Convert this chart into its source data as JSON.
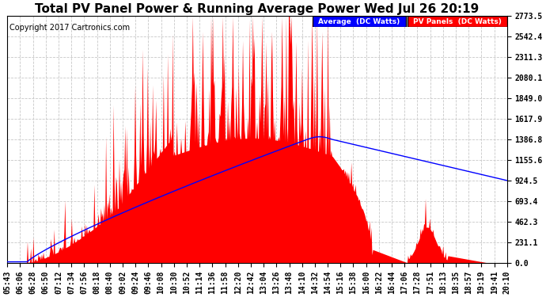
{
  "title": "Total PV Panel Power & Running Average Power Wed Jul 26 20:19",
  "copyright": "Copyright 2017 Cartronics.com",
  "legend_avg": "Average  (DC Watts)",
  "legend_pv": "PV Panels  (DC Watts)",
  "y_ticks": [
    0.0,
    231.1,
    462.3,
    693.4,
    924.5,
    1155.6,
    1386.8,
    1617.9,
    1849.0,
    2080.1,
    2311.3,
    2542.4,
    2773.5
  ],
  "x_labels": [
    "05:43",
    "06:06",
    "06:28",
    "06:50",
    "07:12",
    "07:34",
    "07:56",
    "08:18",
    "08:40",
    "09:02",
    "09:24",
    "09:46",
    "10:08",
    "10:30",
    "10:52",
    "11:14",
    "11:36",
    "11:58",
    "12:20",
    "12:42",
    "13:04",
    "13:26",
    "13:48",
    "14:10",
    "14:32",
    "14:54",
    "15:16",
    "15:38",
    "16:00",
    "16:22",
    "16:44",
    "17:06",
    "17:28",
    "17:51",
    "18:13",
    "18:35",
    "18:57",
    "19:19",
    "19:41",
    "20:10"
  ],
  "ymax": 2773.5,
  "ymin": 0.0,
  "bg_color": "#ffffff",
  "plot_bg_color": "#ffffff",
  "grid_color": "#c8c8c8",
  "pv_fill_color": "#ff0000",
  "avg_line_color": "#0000ff",
  "title_fontsize": 11,
  "copyright_fontsize": 7,
  "tick_fontsize": 7
}
